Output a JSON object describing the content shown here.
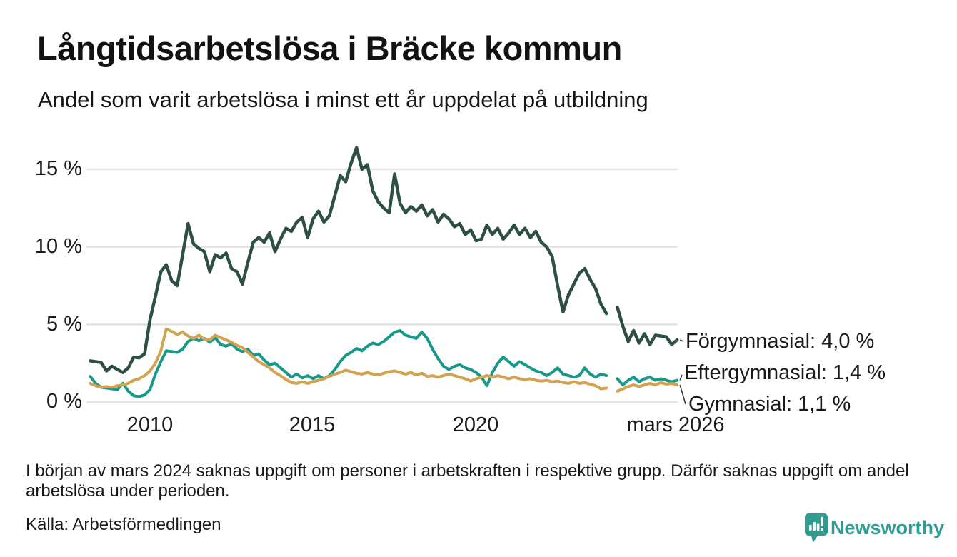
{
  "header": {
    "title": "Långtidsarbetslösa i Bräcke kommun",
    "subtitle": "Andel som varit arbetslösa i minst ett år uppdelat på utbildning"
  },
  "chart_data": {
    "type": "line",
    "title": "Långtidsarbetslösa i Bräcke kommun",
    "subtitle": "Andel som varit arbetslösa i minst ett år uppdelat på utbildning",
    "unit": "%",
    "x_start": 2008.1667,
    "x_step": 0.1667,
    "x_end": 2026.17,
    "ylim": [
      0,
      17
    ],
    "grid": true,
    "legend_position": "end-of-line-labels-right",
    "yticks": [
      {
        "value": 0,
        "label": "0 %"
      },
      {
        "value": 5,
        "label": "5 %"
      },
      {
        "value": 10,
        "label": "10 %"
      },
      {
        "value": 15,
        "label": "15 %"
      }
    ],
    "xticks": [
      {
        "value": 2010,
        "label": "2010"
      },
      {
        "value": 2015,
        "label": "2015"
      },
      {
        "value": 2020,
        "label": "2020"
      },
      {
        "value": 2026.17,
        "label": "mars 2026"
      }
    ],
    "data_gap": {
      "from": 2023.97,
      "to": 2024.3,
      "note": "uppgift saknas i början av mars 2024"
    },
    "series": [
      {
        "name": "Förgymnasial",
        "end_label": "Förgymnasial: 4,0 %",
        "last_value": 4.0,
        "color": "#2e4f46",
        "values": [
          2.65,
          2.6,
          2.55,
          2.0,
          2.3,
          2.1,
          1.9,
          2.2,
          2.9,
          2.85,
          3.1,
          5.3,
          6.8,
          8.4,
          8.85,
          7.8,
          7.5,
          9.5,
          11.5,
          10.2,
          9.9,
          9.7,
          8.4,
          9.5,
          9.3,
          9.6,
          8.6,
          8.4,
          7.6,
          9.0,
          10.3,
          10.6,
          10.3,
          10.9,
          9.7,
          10.5,
          11.2,
          11.0,
          11.6,
          11.9,
          10.6,
          11.8,
          12.3,
          11.6,
          12.0,
          13.3,
          14.6,
          14.2,
          15.4,
          16.4,
          15.0,
          15.3,
          13.6,
          12.9,
          12.5,
          12.2,
          14.7,
          12.8,
          12.2,
          12.6,
          12.3,
          12.7,
          12.0,
          12.4,
          11.6,
          12.1,
          11.8,
          11.3,
          11.5,
          10.8,
          11.1,
          10.4,
          10.5,
          11.4,
          10.8,
          11.2,
          10.5,
          10.9,
          11.4,
          10.8,
          11.2,
          10.6,
          11.0,
          10.3,
          10.0,
          9.4,
          7.5,
          5.8,
          6.9,
          7.6,
          8.3,
          8.6,
          7.9,
          7.3,
          6.3,
          5.7,
          null,
          6.1,
          4.9,
          3.9,
          4.6,
          3.8,
          4.4,
          3.7,
          4.3,
          4.25,
          4.2,
          3.7,
          4.0
        ]
      },
      {
        "name": "Eftergymnasial",
        "end_label": "Eftergymnasial: 1,4 %",
        "last_value": 1.4,
        "color": "#17998a",
        "values": [
          1.65,
          1.2,
          0.95,
          0.9,
          0.85,
          0.8,
          1.2,
          0.7,
          0.4,
          0.35,
          0.45,
          0.8,
          1.8,
          2.6,
          3.3,
          3.25,
          3.2,
          3.4,
          3.9,
          4.1,
          3.95,
          4.1,
          3.85,
          4.15,
          3.7,
          3.6,
          3.75,
          3.4,
          3.25,
          3.4,
          3.0,
          3.1,
          2.7,
          2.4,
          2.5,
          2.2,
          1.9,
          1.6,
          1.8,
          1.55,
          1.7,
          1.5,
          1.7,
          1.5,
          1.7,
          2.1,
          2.6,
          3.0,
          3.2,
          3.45,
          3.3,
          3.6,
          3.8,
          3.7,
          3.9,
          4.2,
          4.5,
          4.6,
          4.3,
          4.2,
          4.1,
          4.5,
          4.1,
          3.4,
          2.8,
          2.3,
          2.1,
          2.3,
          2.4,
          2.2,
          2.1,
          1.9,
          1.6,
          1.05,
          1.9,
          2.5,
          2.9,
          2.6,
          2.3,
          2.6,
          2.4,
          2.2,
          2.0,
          1.9,
          1.7,
          1.9,
          2.2,
          1.8,
          1.7,
          1.6,
          1.7,
          2.2,
          1.8,
          1.6,
          1.8,
          1.7,
          null,
          1.5,
          1.1,
          1.4,
          1.6,
          1.3,
          1.5,
          1.6,
          1.4,
          1.5,
          1.4,
          1.3,
          1.4
        ]
      },
      {
        "name": "Gymnasial",
        "end_label": "Gymnasial: 1,1 %",
        "last_value": 1.1,
        "color": "#d2a24e",
        "values": [
          1.2,
          1.05,
          0.95,
          1.0,
          0.95,
          1.05,
          1.1,
          1.2,
          1.4,
          1.5,
          1.7,
          2.0,
          2.5,
          3.3,
          4.7,
          4.55,
          4.35,
          4.5,
          4.25,
          4.1,
          4.3,
          4.05,
          4.0,
          4.3,
          4.15,
          4.0,
          3.85,
          3.65,
          3.5,
          3.2,
          2.9,
          2.6,
          2.4,
          2.2,
          1.9,
          1.7,
          1.45,
          1.25,
          1.2,
          1.3,
          1.2,
          1.3,
          1.4,
          1.5,
          1.65,
          1.8,
          1.9,
          2.05,
          1.95,
          1.85,
          1.8,
          1.9,
          1.8,
          1.75,
          1.85,
          1.95,
          2.0,
          1.9,
          1.8,
          1.9,
          1.75,
          1.85,
          1.65,
          1.7,
          1.6,
          1.7,
          1.8,
          1.7,
          1.6,
          1.5,
          1.35,
          1.5,
          1.6,
          1.7,
          1.6,
          1.7,
          1.6,
          1.5,
          1.6,
          1.5,
          1.45,
          1.5,
          1.4,
          1.35,
          1.4,
          1.3,
          1.35,
          1.25,
          1.2,
          1.3,
          1.2,
          1.25,
          1.15,
          1.05,
          0.85,
          0.9,
          null,
          0.7,
          0.85,
          1.0,
          1.1,
          1.0,
          1.1,
          1.2,
          1.1,
          1.25,
          1.15,
          1.2,
          1.1
        ]
      }
    ],
    "colors": {
      "grid": "#e3e3e3",
      "text": "#1a1a1a",
      "connector": "#3a3a3a"
    }
  },
  "footnote": "I början av mars 2024 saknas uppgift om personer i arbetskraften i respektive grupp. Därför saknas uppgift om andel arbetslösa under perioden.",
  "source": "Källa: Arbetsförmedlingen",
  "branding": {
    "logo_text": "Newsworthy",
    "logo_color": "#2f9c92",
    "logo_icon": "bar-chart-speech-bubble-icon"
  }
}
